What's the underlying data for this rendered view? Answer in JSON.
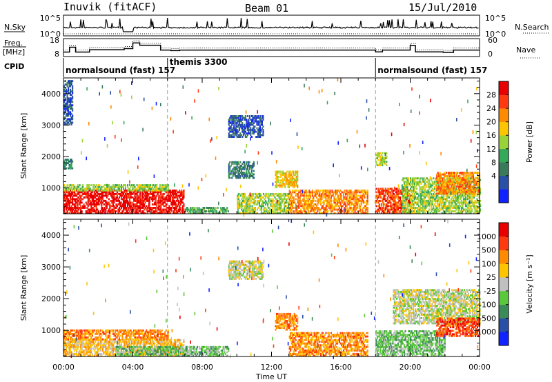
{
  "header": {
    "station": "Inuvik (fitACF)",
    "beam": "Beam 01",
    "date": "15/Jul/2010"
  },
  "left_labels": {
    "nsky": "N.Sky",
    "freq": "Freq.",
    "freq_unit": "[MHz]",
    "cpid": "CPID"
  },
  "right_labels": {
    "nsearch": "N.Search",
    "nave": "Nave"
  },
  "cpid_segments": [
    {
      "label": "normalsound (fast) 157",
      "start_hour": 0.0
    },
    {
      "label": "themis 3300",
      "start_hour": 6.0
    },
    {
      "label": "normalsound (fast) 157",
      "start_hour": 18.0
    }
  ],
  "chart_data": [
    {
      "type": "line",
      "name": "noise",
      "left_ticks": [
        "10^5",
        "10^0"
      ],
      "right_ticks": [
        "10^5",
        "10^0"
      ]
    },
    {
      "type": "line",
      "name": "frequency",
      "left_ticks": [
        "18",
        "8"
      ],
      "right_ticks": [
        "60",
        "0"
      ],
      "ylim_left": [
        8,
        18
      ],
      "ylim_right": [
        0,
        60
      ],
      "freq_steps": [
        {
          "x": 0.0,
          "y": 10.5
        },
        {
          "x": 0.35,
          "y": 13.2
        },
        {
          "x": 0.7,
          "y": 10.5
        },
        {
          "x": 1.5,
          "y": 11.8
        },
        {
          "x": 3.5,
          "y": 12.4
        },
        {
          "x": 4.0,
          "y": 15.6
        },
        {
          "x": 4.4,
          "y": 14.3
        },
        {
          "x": 5.6,
          "y": 11.6
        },
        {
          "x": 6.2,
          "y": 11.3
        },
        {
          "x": 6.7,
          "y": 11.6
        },
        {
          "x": 18.0,
          "y": 10.6
        },
        {
          "x": 18.4,
          "y": 11.6
        },
        {
          "x": 20.0,
          "y": 14.2
        },
        {
          "x": 20.3,
          "y": 10.6
        },
        {
          "x": 21.9,
          "y": 10.3
        },
        {
          "x": 22.5,
          "y": 11.6
        },
        {
          "x": 24.0,
          "y": 11.6
        }
      ]
    },
    {
      "type": "heatmap",
      "name": "power",
      "ylabel": "Slant Range [km]",
      "yticks": [
        1000,
        2000,
        3000,
        4000
      ],
      "ylim": [
        180,
        4500
      ],
      "colorbar_label": "Power [dB]",
      "colorbar_ticks": [
        "28",
        "24",
        "20",
        "16",
        "12",
        "8",
        "4"
      ],
      "colors": [
        "#1022ff",
        "#2a4fa6",
        "#3a7a5a",
        "#35a85a",
        "#9ad23a",
        "#ffc400",
        "#ff8a00",
        "#ff3a10",
        "#e80000"
      ],
      "echo_regions": [
        {
          "t0": 0.0,
          "t1": 6.9,
          "r0": 180,
          "r1": 900,
          "level": 8
        },
        {
          "t0": 0.0,
          "t1": 6.0,
          "r0": 900,
          "r1": 1100,
          "level": 4
        },
        {
          "t0": 0.0,
          "t1": 0.5,
          "r0": 1600,
          "r1": 1900,
          "level": 2
        },
        {
          "t0": 0.0,
          "t1": 0.5,
          "r0": 3000,
          "r1": 4400,
          "level": 1
        },
        {
          "t0": 7.0,
          "t1": 9.5,
          "r0": 180,
          "r1": 400,
          "level": 3
        },
        {
          "t0": 9.5,
          "t1": 11.5,
          "r0": 2600,
          "r1": 3300,
          "level": 1
        },
        {
          "t0": 9.5,
          "t1": 11.0,
          "r0": 1300,
          "r1": 1800,
          "level": 2
        },
        {
          "t0": 10.0,
          "t1": 13.0,
          "r0": 180,
          "r1": 800,
          "level": 4
        },
        {
          "t0": 12.2,
          "t1": 13.5,
          "r0": 1000,
          "r1": 1500,
          "level": 5
        },
        {
          "t0": 13.0,
          "t1": 17.5,
          "r0": 180,
          "r1": 900,
          "level": 6
        },
        {
          "t0": 18.0,
          "t1": 20.0,
          "r0": 180,
          "r1": 1000,
          "level": 7
        },
        {
          "t0": 18.0,
          "t1": 18.6,
          "r0": 1700,
          "r1": 2100,
          "level": 4
        },
        {
          "t0": 19.5,
          "t1": 24.0,
          "r0": 180,
          "r1": 1300,
          "level": 4
        },
        {
          "t0": 21.5,
          "t1": 24.0,
          "r0": 800,
          "r1": 1500,
          "level": 6
        }
      ]
    },
    {
      "type": "heatmap",
      "name": "velocity",
      "ylabel": "Slant Range [km]",
      "yticks": [
        1000,
        2000,
        3000,
        4000
      ],
      "ylim": [
        180,
        4500
      ],
      "xlabel": "Time UT",
      "xticks": [
        "00:00",
        "04:00",
        "08:00",
        "12:00",
        "16:00",
        "20:00",
        "00:00"
      ],
      "xlim_hours": [
        0,
        24
      ],
      "colorbar_label": "Velocity [m s⁻¹]",
      "colorbar_ticks": [
        "1000",
        "500",
        "100",
        "25",
        "-25",
        "-100",
        "-500",
        "-1000"
      ],
      "colors": [
        "#1022ff",
        "#2a4fa6",
        "#3a8a5a",
        "#5ac83a",
        "#c0c0c0",
        "#ffc400",
        "#ff8a00",
        "#ff3a10",
        "#e80000"
      ],
      "echo_regions": [
        {
          "t0": 0.0,
          "t1": 6.9,
          "r0": 180,
          "r1": 700,
          "level": 5
        },
        {
          "t0": 0.0,
          "t1": 6.0,
          "r0": 700,
          "r1": 1000,
          "level": 6
        },
        {
          "t0": 3.0,
          "t1": 9.5,
          "r0": 180,
          "r1": 500,
          "level": 3
        },
        {
          "t0": 9.5,
          "t1": 11.5,
          "r0": 2600,
          "r1": 3200,
          "level": 4
        },
        {
          "t0": 12.2,
          "t1": 13.5,
          "r0": 1000,
          "r1": 1500,
          "level": 6
        },
        {
          "t0": 13.0,
          "t1": 17.5,
          "r0": 180,
          "r1": 900,
          "level": 6
        },
        {
          "t0": 18.0,
          "t1": 22.0,
          "r0": 180,
          "r1": 1000,
          "level": 3
        },
        {
          "t0": 19.0,
          "t1": 24.0,
          "r0": 1200,
          "r1": 2300,
          "level": 4
        },
        {
          "t0": 21.5,
          "t1": 24.0,
          "r0": 800,
          "r1": 1400,
          "level": 7
        }
      ]
    }
  ]
}
